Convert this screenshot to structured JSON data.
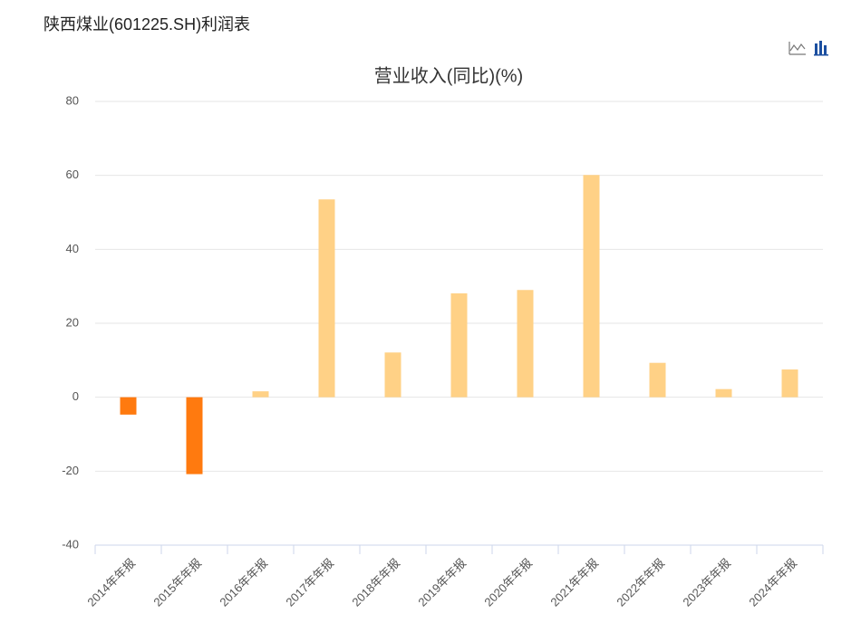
{
  "header": {
    "title": "陕西煤业(601225.SH)利润表"
  },
  "chart_data": {
    "type": "bar",
    "title": "营业收入(同比)(%)",
    "categories": [
      "2014年年报",
      "2015年年报",
      "2016年年报",
      "2017年年报",
      "2018年年报",
      "2019年年报",
      "2020年年报",
      "2021年年报",
      "2022年年报",
      "2023年年报",
      "2024年年报"
    ],
    "values": [
      -4.7,
      -20.8,
      1.6,
      53.5,
      12.1,
      28.1,
      29.0,
      60.1,
      9.3,
      2.2,
      7.5
    ],
    "positive_color": "#ffd186",
    "negative_color": "#ff7a0f",
    "ylim": [
      -40,
      80
    ],
    "yticks": [
      -40,
      -20,
      0,
      20,
      40,
      60,
      80
    ],
    "grid": true
  }
}
